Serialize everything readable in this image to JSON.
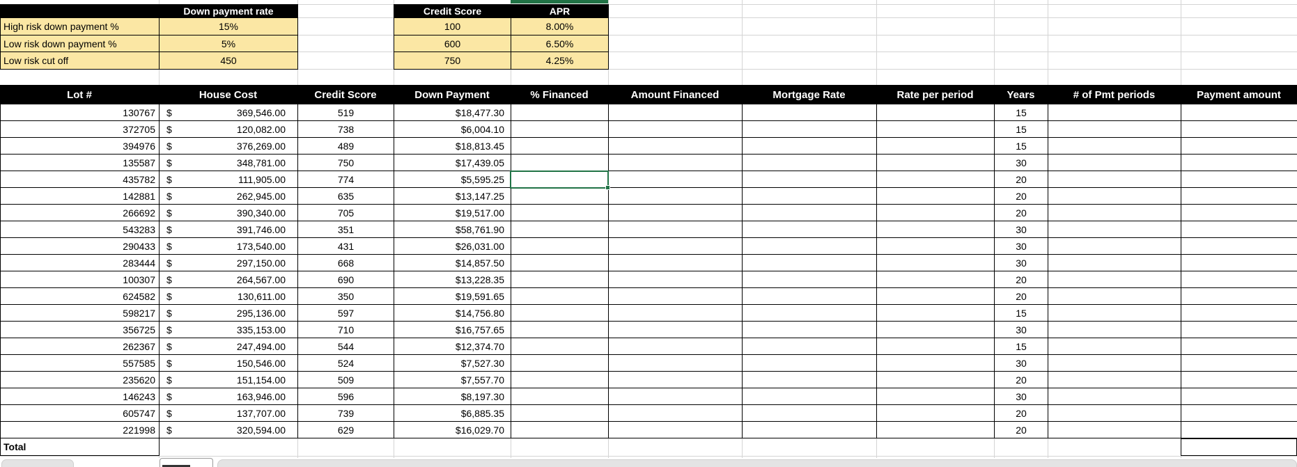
{
  "down_payment_table": {
    "header": "Down payment rate",
    "rows": [
      {
        "label": "High risk down payment %",
        "value": "15%"
      },
      {
        "label": "Low risk down payment %",
        "value": "5%"
      },
      {
        "label": "Low risk cut off",
        "value": "450"
      }
    ]
  },
  "apr_table": {
    "score_header": "Credit Score",
    "apr_header": "APR",
    "rows": [
      {
        "credit_score": "100",
        "apr": "8.00%"
      },
      {
        "credit_score": "600",
        "apr": "6.50%"
      },
      {
        "credit_score": "750",
        "apr": "4.25%"
      }
    ]
  },
  "loan_table": {
    "headers": [
      "Lot #",
      "House Cost",
      "Credit Score",
      "Down Payment",
      "% Financed",
      "Amount Financed",
      "Mortgage Rate",
      "Rate per period",
      "Years",
      "# of Pmt periods",
      "Payment amount"
    ],
    "currency_symbol": "$",
    "rows": [
      {
        "lot": "130767",
        "house_cost": "369,546.00",
        "credit_score": "519",
        "down_payment": "$18,477.30",
        "pct_financed": "",
        "amount_financed": "",
        "mortgage_rate": "",
        "rate_per_period": "",
        "years": "15",
        "pmt_periods": "",
        "payment_amount": ""
      },
      {
        "lot": "372705",
        "house_cost": "120,082.00",
        "credit_score": "738",
        "down_payment": "$6,004.10",
        "pct_financed": "",
        "amount_financed": "",
        "mortgage_rate": "",
        "rate_per_period": "",
        "years": "15",
        "pmt_periods": "",
        "payment_amount": ""
      },
      {
        "lot": "394976",
        "house_cost": "376,269.00",
        "credit_score": "489",
        "down_payment": "$18,813.45",
        "pct_financed": "",
        "amount_financed": "",
        "mortgage_rate": "",
        "rate_per_period": "",
        "years": "15",
        "pmt_periods": "",
        "payment_amount": ""
      },
      {
        "lot": "135587",
        "house_cost": "348,781.00",
        "credit_score": "750",
        "down_payment": "$17,439.05",
        "pct_financed": "",
        "amount_financed": "",
        "mortgage_rate": "",
        "rate_per_period": "",
        "years": "30",
        "pmt_periods": "",
        "payment_amount": ""
      },
      {
        "lot": "435782",
        "house_cost": "111,905.00",
        "credit_score": "774",
        "down_payment": "$5,595.25",
        "pct_financed": "",
        "amount_financed": "",
        "mortgage_rate": "",
        "rate_per_period": "",
        "years": "20",
        "pmt_periods": "",
        "payment_amount": ""
      },
      {
        "lot": "142881",
        "house_cost": "262,945.00",
        "credit_score": "635",
        "down_payment": "$13,147.25",
        "pct_financed": "",
        "amount_financed": "",
        "mortgage_rate": "",
        "rate_per_period": "",
        "years": "20",
        "pmt_periods": "",
        "payment_amount": ""
      },
      {
        "lot": "266692",
        "house_cost": "390,340.00",
        "credit_score": "705",
        "down_payment": "$19,517.00",
        "pct_financed": "",
        "amount_financed": "",
        "mortgage_rate": "",
        "rate_per_period": "",
        "years": "20",
        "pmt_periods": "",
        "payment_amount": ""
      },
      {
        "lot": "543283",
        "house_cost": "391,746.00",
        "credit_score": "351",
        "down_payment": "$58,761.90",
        "pct_financed": "",
        "amount_financed": "",
        "mortgage_rate": "",
        "rate_per_period": "",
        "years": "30",
        "pmt_periods": "",
        "payment_amount": ""
      },
      {
        "lot": "290433",
        "house_cost": "173,540.00",
        "credit_score": "431",
        "down_payment": "$26,031.00",
        "pct_financed": "",
        "amount_financed": "",
        "mortgage_rate": "",
        "rate_per_period": "",
        "years": "30",
        "pmt_periods": "",
        "payment_amount": ""
      },
      {
        "lot": "283444",
        "house_cost": "297,150.00",
        "credit_score": "668",
        "down_payment": "$14,857.50",
        "pct_financed": "",
        "amount_financed": "",
        "mortgage_rate": "",
        "rate_per_period": "",
        "years": "30",
        "pmt_periods": "",
        "payment_amount": ""
      },
      {
        "lot": "100307",
        "house_cost": "264,567.00",
        "credit_score": "690",
        "down_payment": "$13,228.35",
        "pct_financed": "",
        "amount_financed": "",
        "mortgage_rate": "",
        "rate_per_period": "",
        "years": "20",
        "pmt_periods": "",
        "payment_amount": ""
      },
      {
        "lot": "624582",
        "house_cost": "130,611.00",
        "credit_score": "350",
        "down_payment": "$19,591.65",
        "pct_financed": "",
        "amount_financed": "",
        "mortgage_rate": "",
        "rate_per_period": "",
        "years": "20",
        "pmt_periods": "",
        "payment_amount": ""
      },
      {
        "lot": "598217",
        "house_cost": "295,136.00",
        "credit_score": "597",
        "down_payment": "$14,756.80",
        "pct_financed": "",
        "amount_financed": "",
        "mortgage_rate": "",
        "rate_per_period": "",
        "years": "15",
        "pmt_periods": "",
        "payment_amount": ""
      },
      {
        "lot": "356725",
        "house_cost": "335,153.00",
        "credit_score": "710",
        "down_payment": "$16,757.65",
        "pct_financed": "",
        "amount_financed": "",
        "mortgage_rate": "",
        "rate_per_period": "",
        "years": "30",
        "pmt_periods": "",
        "payment_amount": ""
      },
      {
        "lot": "262367",
        "house_cost": "247,494.00",
        "credit_score": "544",
        "down_payment": "$12,374.70",
        "pct_financed": "",
        "amount_financed": "",
        "mortgage_rate": "",
        "rate_per_period": "",
        "years": "15",
        "pmt_periods": "",
        "payment_amount": ""
      },
      {
        "lot": "557585",
        "house_cost": "150,546.00",
        "credit_score": "524",
        "down_payment": "$7,527.30",
        "pct_financed": "",
        "amount_financed": "",
        "mortgage_rate": "",
        "rate_per_period": "",
        "years": "30",
        "pmt_periods": "",
        "payment_amount": ""
      },
      {
        "lot": "235620",
        "house_cost": "151,154.00",
        "credit_score": "509",
        "down_payment": "$7,557.70",
        "pct_financed": "",
        "amount_financed": "",
        "mortgage_rate": "",
        "rate_per_period": "",
        "years": "20",
        "pmt_periods": "",
        "payment_amount": ""
      },
      {
        "lot": "146243",
        "house_cost": "163,946.00",
        "credit_score": "596",
        "down_payment": "$8,197.30",
        "pct_financed": "",
        "amount_financed": "",
        "mortgage_rate": "",
        "rate_per_period": "",
        "years": "30",
        "pmt_periods": "",
        "payment_amount": ""
      },
      {
        "lot": "605747",
        "house_cost": "137,707.00",
        "credit_score": "739",
        "down_payment": "$6,885.35",
        "pct_financed": "",
        "amount_financed": "",
        "mortgage_rate": "",
        "rate_per_period": "",
        "years": "20",
        "pmt_periods": "",
        "payment_amount": ""
      },
      {
        "lot": "221998",
        "house_cost": "320,594.00",
        "credit_score": "629",
        "down_payment": "$16,029.70",
        "pct_financed": "",
        "amount_financed": "",
        "mortgage_rate": "",
        "rate_per_period": "",
        "years": "20",
        "pmt_periods": "",
        "payment_amount": ""
      }
    ],
    "total_label": "Total"
  },
  "selection": {
    "row_index": 5,
    "column": "% Financed"
  },
  "colors": {
    "header_bg": "#000000",
    "header_text": "#ffffff",
    "lookup_fill": "#fbe7a4",
    "selection_green": "#217346",
    "gridline": "#d4d4d4",
    "tab_gray": "#e4e4e4"
  }
}
